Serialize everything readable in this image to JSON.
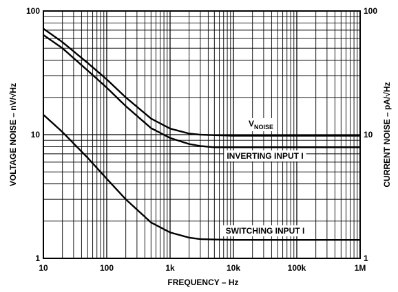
{
  "chart_data": {
    "type": "line",
    "x_scale": "log",
    "y_scale": "log",
    "xlim": [
      10,
      1000000
    ],
    "ylim": [
      1,
      100
    ],
    "grid": true,
    "xlabel": "FREQUENCY – Hz",
    "ylabel_left": "VOLTAGE NOISE – nV/√Hz",
    "ylabel_right": "CURRENT NOISE – pA/√Hz",
    "x_ticks": [
      {
        "value": 10,
        "label": "10"
      },
      {
        "value": 100,
        "label": "100"
      },
      {
        "value": 1000,
        "label": "1k"
      },
      {
        "value": 10000,
        "label": "10k"
      },
      {
        "value": 100000,
        "label": "100k"
      },
      {
        "value": 1000000,
        "label": "1M"
      }
    ],
    "y_ticks_left": [
      {
        "value": 1,
        "label": "1"
      },
      {
        "value": 10,
        "label": "10"
      },
      {
        "value": 100,
        "label": "100"
      }
    ],
    "y_ticks_right": [
      {
        "value": 1,
        "label": "1"
      },
      {
        "value": 10,
        "label": "10"
      },
      {
        "value": 100,
        "label": "100"
      }
    ],
    "series": [
      {
        "name": "VNOISE",
        "label_main": "V",
        "label_sub": "NOISE",
        "x": [
          10,
          20,
          50,
          100,
          200,
          500,
          1000,
          2000,
          3000,
          5000,
          10000,
          100000,
          1000000
        ],
        "y": [
          72,
          56,
          38,
          28,
          20,
          13.5,
          11.2,
          10.2,
          10.0,
          9.9,
          9.8,
          9.8,
          9.8
        ]
      },
      {
        "name": "INVERTING INPUT I",
        "label_main": "INVERTING INPUT I",
        "x": [
          10,
          20,
          50,
          100,
          200,
          500,
          1000,
          2000,
          3000,
          5000,
          10000,
          100000,
          1000000
        ],
        "y": [
          64,
          50,
          33,
          24,
          17,
          11.3,
          9.4,
          8.4,
          8.1,
          7.9,
          7.9,
          7.9,
          7.9
        ]
      },
      {
        "name": "SWITCHING INPUT I",
        "label_main": "SWITCHING INPUT I",
        "x": [
          10,
          20,
          50,
          100,
          200,
          500,
          1000,
          2000,
          3000,
          5000,
          10000,
          100000,
          1000000
        ],
        "y": [
          14.5,
          10.5,
          6.5,
          4.4,
          3.0,
          1.95,
          1.62,
          1.47,
          1.43,
          1.42,
          1.41,
          1.41,
          1.41
        ]
      }
    ]
  }
}
